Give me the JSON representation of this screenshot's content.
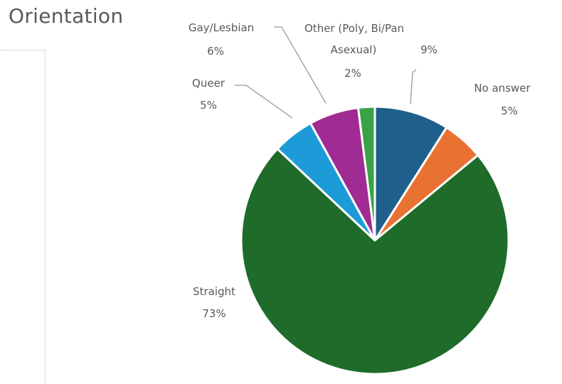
{
  "chart_data": {
    "type": "pie",
    "title": "Orientation",
    "start_angle_deg": 0,
    "direction": "clockwise",
    "slices": [
      {
        "category": "Other (Poly, Bi/Pan",
        "value": 9,
        "pct_label": "9%",
        "color": "#1F5F8B"
      },
      {
        "category": "No answer",
        "value": 5,
        "pct_label": "5%",
        "color": "#E97132"
      },
      {
        "category": "Straight",
        "value": 73,
        "pct_label": "73%",
        "color": "#1E6B2A"
      },
      {
        "category": "Queer",
        "value": 5,
        "pct_label": "5%",
        "color": "#1D9BD8"
      },
      {
        "category": "Gay/Lesbian",
        "value": 6,
        "pct_label": "6%",
        "color": "#A02B93"
      },
      {
        "category": "Asexual)",
        "value": 2,
        "pct_label": "2%",
        "color": "#3AA244"
      }
    ],
    "legend": "none",
    "slice_border_color": "#ffffff"
  }
}
